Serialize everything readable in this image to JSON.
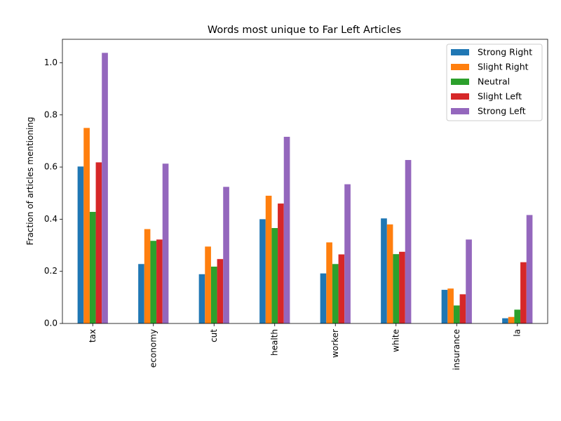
{
  "chart_data": {
    "type": "bar",
    "title": "Words most unique to Far Left Articles",
    "xlabel": "",
    "ylabel": "Fraction of articles mentioning",
    "ylim": [
      0,
      1.09
    ],
    "yticks": [
      "0.0",
      "0.2",
      "0.4",
      "0.6",
      "0.8",
      "1.0"
    ],
    "grid": false,
    "legend_position": "top-right",
    "categories": [
      "tax",
      "economy",
      "cut",
      "health",
      "worker",
      "white",
      "insurance",
      "la"
    ],
    "series": [
      {
        "name": "Strong Right",
        "color": "#1f77b4",
        "values": [
          0.602,
          0.228,
          0.189,
          0.4,
          0.192,
          0.403,
          0.129,
          0.02
        ]
      },
      {
        "name": "Slight Right",
        "color": "#ff7f0e",
        "values": [
          0.75,
          0.362,
          0.295,
          0.49,
          0.311,
          0.38,
          0.134,
          0.025
        ]
      },
      {
        "name": "Neutral",
        "color": "#2ca02c",
        "values": [
          0.428,
          0.317,
          0.218,
          0.366,
          0.228,
          0.266,
          0.069,
          0.053
        ]
      },
      {
        "name": "Slight Left",
        "color": "#d62728",
        "values": [
          0.618,
          0.322,
          0.247,
          0.46,
          0.265,
          0.275,
          0.112,
          0.235
        ]
      },
      {
        "name": "Strong Left",
        "color": "#9467bd",
        "values": [
          1.038,
          0.613,
          0.524,
          0.716,
          0.534,
          0.627,
          0.322,
          0.416
        ]
      }
    ]
  }
}
